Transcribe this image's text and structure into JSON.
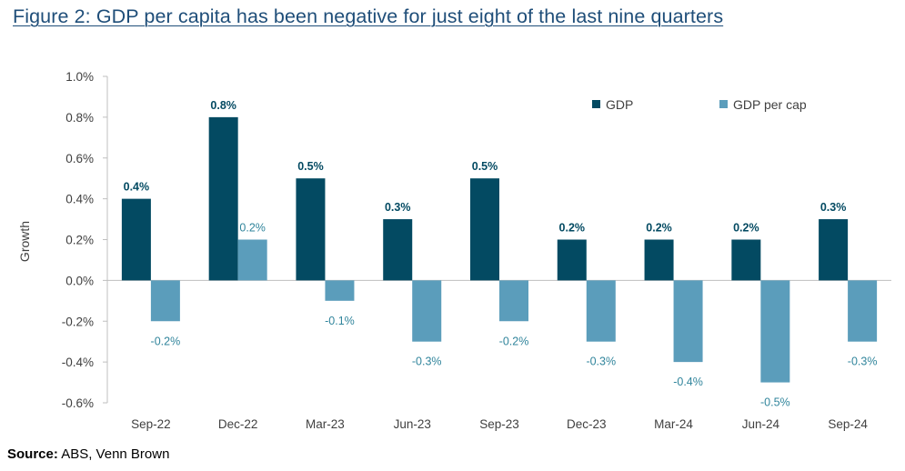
{
  "title": "Figure 2: GDP per capita has been negative for just eight of the last nine quarters",
  "source": {
    "label": "Source:",
    "text": "ABS, Venn Brown"
  },
  "colors": {
    "gdp": "#034a62",
    "gdp_per_cap": "#5b9dbb",
    "title": "#1f4e79",
    "axis": "#bfbfbf",
    "text": "#404040"
  },
  "chart_data": {
    "type": "bar",
    "categories": [
      "Sep-22",
      "Dec-22",
      "Mar-23",
      "Jun-23",
      "Sep-23",
      "Dec-23",
      "Mar-24",
      "Jun-24",
      "Sep-24"
    ],
    "series": [
      {
        "name": "GDP",
        "values": [
          0.4,
          0.8,
          0.5,
          0.3,
          0.5,
          0.2,
          0.2,
          0.2,
          0.3
        ],
        "labels": [
          "0.4%",
          "0.8%",
          "0.5%",
          "0.3%",
          "0.5%",
          "0.2%",
          "0.2%",
          "0.2%",
          "0.3%"
        ]
      },
      {
        "name": "GDP per cap",
        "values": [
          -0.2,
          0.2,
          -0.1,
          -0.3,
          -0.2,
          -0.3,
          -0.4,
          -0.5,
          -0.3
        ],
        "labels": [
          "-0.2%",
          "0.2%",
          "-0.1%",
          "-0.3%",
          "-0.2%",
          "-0.3%",
          "-0.4%",
          "-0.5%",
          "-0.3%"
        ]
      }
    ],
    "ylabel": "Growth",
    "xlabel": "",
    "ylim": [
      -0.6,
      1.0
    ],
    "yticks": [
      1.0,
      0.8,
      0.6,
      0.4,
      0.2,
      0.0,
      -0.2,
      -0.4,
      -0.6
    ],
    "ytick_labels": [
      "1.0%",
      "0.8%",
      "0.6%",
      "0.4%",
      "0.2%",
      "0.0%",
      "-0.2%",
      "-0.4%",
      "-0.6%"
    ],
    "legend_position": "top-right",
    "grid": false
  }
}
